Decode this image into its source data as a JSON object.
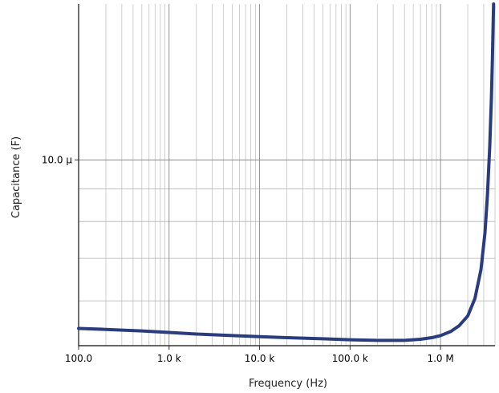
{
  "chart_data": {
    "type": "line",
    "xlabel": "Frequency (Hz)",
    "ylabel": "Capacitance (F)",
    "x_scale": "log",
    "y_scale": "log",
    "xlim": [
      100,
      4000000
    ],
    "ylim": [
      5.1e-06,
      1.76e-05
    ],
    "x_ticks": [
      {
        "value": 100,
        "label": "100.0"
      },
      {
        "value": 1000,
        "label": "1.0 k"
      },
      {
        "value": 10000,
        "label": "10.0 k"
      },
      {
        "value": 100000,
        "label": "100.0 k"
      },
      {
        "value": 1000000,
        "label": "1.0 M"
      }
    ],
    "y_ticks": [
      {
        "value": 1e-05,
        "label": "10.0 µ"
      }
    ],
    "grid": true,
    "series": [
      {
        "color": "#2b3c7e",
        "points": [
          [
            100,
            5.43e-06
          ],
          [
            200,
            5.41e-06
          ],
          [
            500,
            5.38e-06
          ],
          [
            1000,
            5.35e-06
          ],
          [
            2000,
            5.32e-06
          ],
          [
            5000,
            5.29e-06
          ],
          [
            10000,
            5.27e-06
          ],
          [
            20000,
            5.25e-06
          ],
          [
            50000,
            5.23e-06
          ],
          [
            100000,
            5.21e-06
          ],
          [
            200000,
            5.2e-06
          ],
          [
            400000,
            5.2e-06
          ],
          [
            600000,
            5.22e-06
          ],
          [
            800000,
            5.25e-06
          ],
          [
            1000000,
            5.29e-06
          ],
          [
            1300000,
            5.37e-06
          ],
          [
            1600000,
            5.48e-06
          ],
          [
            2000000,
            5.68e-06
          ],
          [
            2400000,
            6.05e-06
          ],
          [
            2800000,
            6.72e-06
          ],
          [
            3100000,
            7.68e-06
          ],
          [
            3300000,
            8.8e-06
          ],
          [
            3500000,
            1.05e-05
          ],
          [
            3650000,
            1.25e-05
          ],
          [
            3750000,
            1.45e-05
          ],
          [
            3820000,
            1.65e-05
          ],
          [
            3860000,
            1.76e-05
          ]
        ]
      }
    ]
  }
}
